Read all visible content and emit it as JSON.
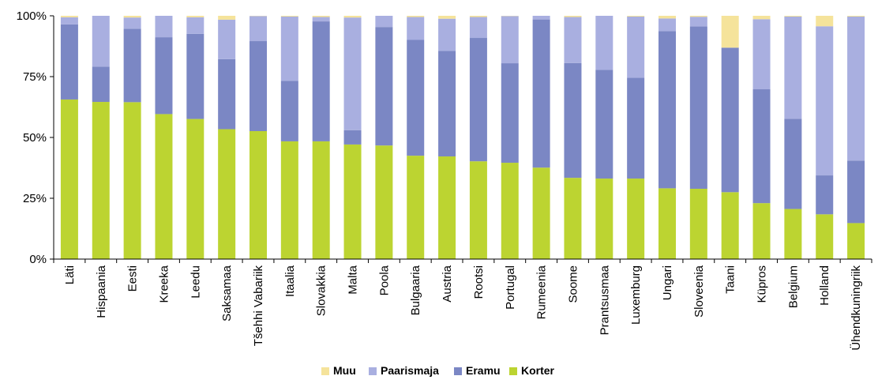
{
  "chart_data": {
    "type": "bar",
    "stacked": true,
    "categories": [
      "Läti",
      "Hispaania",
      "Eesti",
      "Kreeka",
      "Leedu",
      "Saksamaa",
      "Tšehhi Vabariik",
      "Itaalia",
      "Slovakkia",
      "Malta",
      "Poola",
      "Bulgaaria",
      "Austria",
      "Rootsi",
      "Portugal",
      "Rumeenia",
      "Soome",
      "Prantsusmaa",
      "Luxemburg",
      "Ungari",
      "Sloveenia",
      "Taani",
      "Küpros",
      "Belgium",
      "Holland",
      "Ühendkuningriik"
    ],
    "series": [
      {
        "name": "Korter",
        "color": "#bcd431",
        "values": [
          65.6,
          64.6,
          64.5,
          59.6,
          57.6,
          53.4,
          52.6,
          48.4,
          48.4,
          47.1,
          46.7,
          42.5,
          42.2,
          40.2,
          39.6,
          37.6,
          33.4,
          33.1,
          33.1,
          29.1,
          28.9,
          27.5,
          23.0,
          20.6,
          18.4,
          14.8
        ]
      },
      {
        "name": "Eramu",
        "color": "#7b87c4",
        "values": [
          30.9,
          14.5,
          30.2,
          31.6,
          35.0,
          28.8,
          37.0,
          24.9,
          49.3,
          5.9,
          48.7,
          47.6,
          43.4,
          50.7,
          40.9,
          60.9,
          47.2,
          44.7,
          41.4,
          64.6,
          66.7,
          59.4,
          46.8,
          37.1,
          16.0,
          25.7
        ]
      },
      {
        "name": "Paarismaja",
        "color": "#a9afe0",
        "values": [
          2.9,
          20.9,
          4.6,
          8.8,
          6.8,
          16.2,
          10.3,
          26.4,
          1.8,
          46.3,
          4.6,
          9.4,
          13.2,
          8.6,
          19.4,
          1.5,
          18.9,
          22.2,
          25.2,
          5.2,
          4.0,
          0.0,
          28.8,
          42.0,
          61.3,
          59.2
        ]
      },
      {
        "name": "Muu",
        "color": "#f5e39b",
        "values": [
          0.6,
          0.0,
          0.7,
          0.0,
          0.6,
          1.6,
          0.1,
          0.3,
          0.5,
          0.7,
          0.0,
          0.5,
          1.2,
          0.5,
          0.1,
          0.0,
          0.5,
          0.0,
          0.3,
          1.1,
          0.4,
          13.1,
          1.4,
          0.3,
          4.3,
          0.3
        ]
      }
    ],
    "ylim": [
      0,
      100
    ],
    "yticks": [
      "0%",
      "25%",
      "50%",
      "75%",
      "100%"
    ],
    "legend_position": "bottom",
    "legend_order": [
      "Muu",
      "Paarismaja",
      "Eramu",
      "Korter"
    ],
    "grid": false
  }
}
